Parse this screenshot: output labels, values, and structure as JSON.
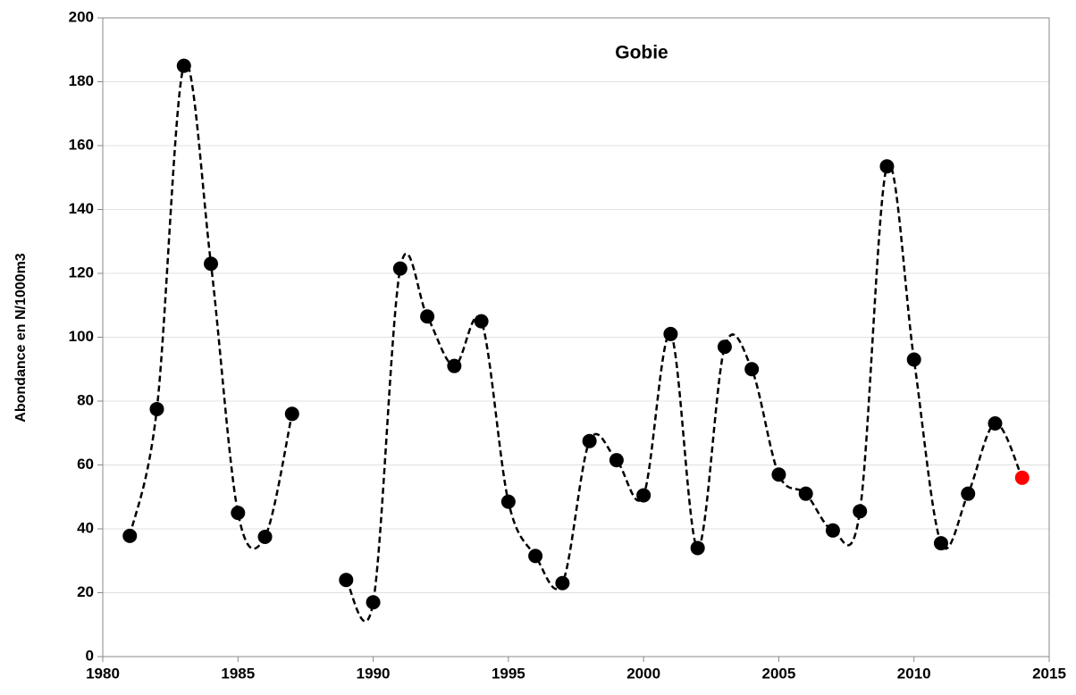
{
  "chart_data": {
    "type": "line",
    "title": "Gobie",
    "y_label": "Abondance en N/1000m3",
    "x": [
      1981,
      1982,
      1983,
      1984,
      1985,
      1986,
      1987,
      1988,
      1989,
      1990,
      1991,
      1992,
      1993,
      1994,
      1995,
      1996,
      1997,
      1998,
      1999,
      2000,
      2001,
      2002,
      2003,
      2004,
      2005,
      2006,
      2007,
      2008,
      2009,
      2010,
      2011,
      2012,
      2013,
      2014
    ],
    "values": [
      37.8,
      77.5,
      185,
      123,
      45,
      37.5,
      76,
      null,
      24,
      17,
      121.5,
      106.5,
      91,
      105,
      48.5,
      31.5,
      23,
      67.5,
      61.5,
      50.5,
      101,
      34,
      97,
      90,
      57,
      51,
      39.5,
      45.5,
      153.5,
      93,
      35.5,
      51,
      73,
      56
    ],
    "marker_colors": [
      "#000000",
      "#000000",
      "#000000",
      "#000000",
      "#000000",
      "#000000",
      "#000000",
      "#000000",
      "#000000",
      "#000000",
      "#000000",
      "#000000",
      "#000000",
      "#000000",
      "#000000",
      "#000000",
      "#000000",
      "#000000",
      "#000000",
      "#000000",
      "#000000",
      "#000000",
      "#000000",
      "#000000",
      "#000000",
      "#000000",
      "#000000",
      "#000000",
      "#000000",
      "#000000",
      "#000000",
      "#000000",
      "#000000",
      "#ff0000"
    ],
    "line_color": "#000000",
    "line_style": "dashed",
    "smooth": true,
    "xlim": [
      1980,
      2015
    ],
    "xticks": [
      1980,
      1985,
      1990,
      1995,
      2000,
      2005,
      2010,
      2015
    ],
    "ylim": [
      0,
      200
    ],
    "yticks": [
      0,
      20,
      40,
      60,
      80,
      100,
      120,
      140,
      160,
      180,
      200
    ],
    "grid": true
  }
}
